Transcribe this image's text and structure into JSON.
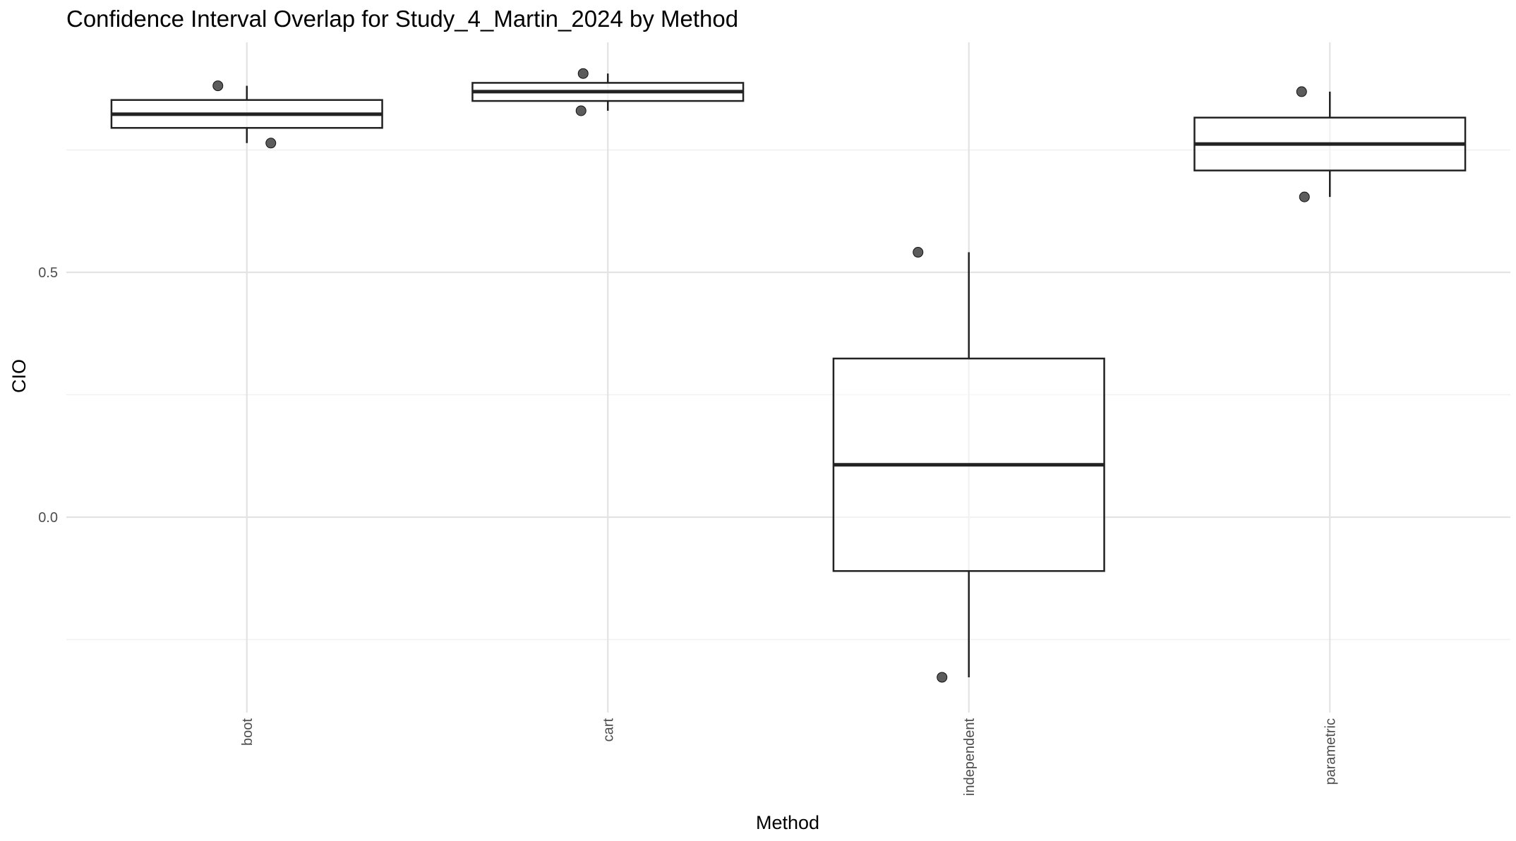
{
  "chart_data": {
    "type": "box",
    "title": "Confidence Interval Overlap for Study_4_Martin_2024 by Method",
    "xlabel": "Method",
    "ylabel": "CIO",
    "ylim": [
      -0.39,
      0.97
    ],
    "y_ticks": [
      0.0,
      0.5
    ],
    "y_tick_labels": [
      "0.0",
      "0.5"
    ],
    "grid": true,
    "categories": [
      "boot",
      "cart",
      "independent",
      "parametric"
    ],
    "boxes": [
      {
        "category": "boot",
        "min": 0.764,
        "q1": 0.795,
        "median": 0.823,
        "q3": 0.852,
        "max": 0.881,
        "points": [
          0.881,
          0.764
        ]
      },
      {
        "category": "cart",
        "min": 0.83,
        "q1": 0.85,
        "median": 0.869,
        "q3": 0.887,
        "max": 0.906,
        "points": [
          0.906,
          0.83
        ]
      },
      {
        "category": "independent",
        "min": -0.327,
        "q1": -0.11,
        "median": 0.107,
        "q3": 0.324,
        "max": 0.541,
        "points": [
          0.541,
          -0.327
        ]
      },
      {
        "category": "parametric",
        "min": 0.654,
        "q1": 0.708,
        "median": 0.762,
        "q3": 0.816,
        "max": 0.869,
        "points": [
          0.869,
          0.654
        ]
      }
    ]
  }
}
